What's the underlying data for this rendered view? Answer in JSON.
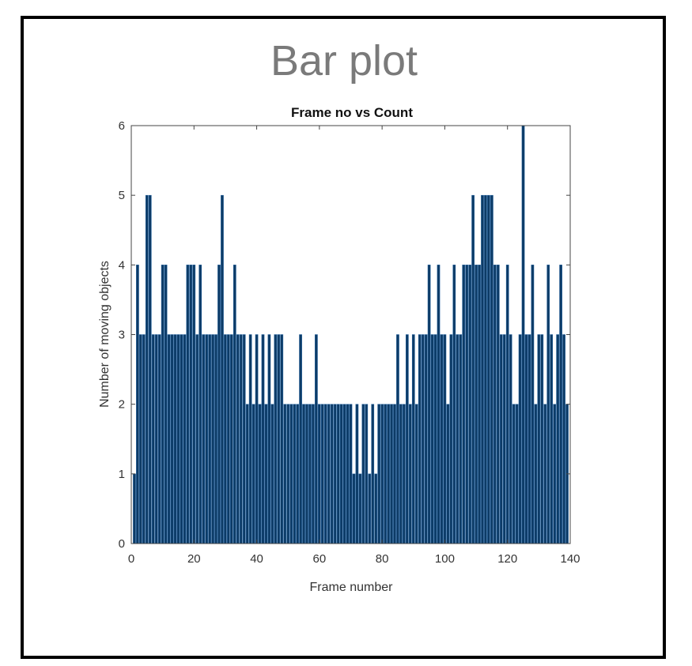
{
  "heading": "Bar plot",
  "colors": {
    "bar": "#0d3b66",
    "bar_edge": "#1f5f9e",
    "axis": "#444444",
    "frame": "#000000"
  },
  "chart_data": {
    "type": "bar",
    "title": "Frame no vs Count",
    "xlabel": "Frame number",
    "ylabel": "Number of moving objects",
    "xlim": [
      0,
      140
    ],
    "ylim": [
      0,
      6
    ],
    "xticks": [
      "0",
      "20",
      "40",
      "60",
      "80",
      "100",
      "120",
      "140"
    ],
    "yticks": [
      "0",
      "1",
      "2",
      "3",
      "4",
      "5",
      "6"
    ],
    "grid": false,
    "x": [
      1,
      2,
      3,
      4,
      5,
      6,
      7,
      8,
      9,
      10,
      11,
      12,
      13,
      14,
      15,
      16,
      17,
      18,
      19,
      20,
      21,
      22,
      23,
      24,
      25,
      26,
      27,
      28,
      29,
      30,
      31,
      32,
      33,
      34,
      35,
      36,
      37,
      38,
      39,
      40,
      41,
      42,
      43,
      44,
      45,
      46,
      47,
      48,
      49,
      50,
      51,
      52,
      53,
      54,
      55,
      56,
      57,
      58,
      59,
      60,
      61,
      62,
      63,
      64,
      65,
      66,
      67,
      68,
      69,
      70,
      71,
      72,
      73,
      74,
      75,
      76,
      77,
      78,
      79,
      80,
      81,
      82,
      83,
      84,
      85,
      86,
      87,
      88,
      89,
      90,
      91,
      92,
      93,
      94,
      95,
      96,
      97,
      98,
      99,
      100,
      101,
      102,
      103,
      104,
      105,
      106,
      107,
      108,
      109,
      110,
      111,
      112,
      113,
      114,
      115,
      116,
      117,
      118,
      119,
      120,
      121,
      122,
      123,
      124,
      125,
      126,
      127,
      128,
      129,
      130,
      131,
      132,
      133,
      134,
      135,
      136,
      137,
      138,
      139
    ],
    "values": [
      1,
      4,
      3,
      3,
      5,
      5,
      3,
      3,
      3,
      4,
      4,
      3,
      3,
      3,
      3,
      3,
      3,
      4,
      4,
      4,
      3,
      4,
      3,
      3,
      3,
      3,
      3,
      4,
      5,
      3,
      3,
      3,
      4,
      3,
      3,
      3,
      2,
      3,
      2,
      3,
      2,
      3,
      2,
      3,
      2,
      3,
      3,
      3,
      2,
      2,
      2,
      2,
      2,
      3,
      2,
      2,
      2,
      2,
      3,
      2,
      2,
      2,
      2,
      2,
      2,
      2,
      2,
      2,
      2,
      2,
      1,
      2,
      1,
      2,
      2,
      1,
      2,
      1,
      2,
      2,
      2,
      2,
      2,
      2,
      3,
      2,
      2,
      3,
      2,
      3,
      2,
      3,
      3,
      3,
      4,
      3,
      3,
      4,
      3,
      3,
      2,
      3,
      4,
      3,
      3,
      4,
      4,
      4,
      5,
      4,
      4,
      5,
      5,
      5,
      5,
      4,
      4,
      3,
      3,
      4,
      3,
      2,
      2,
      3,
      6,
      3,
      3,
      4,
      2,
      3,
      3,
      2,
      4,
      3,
      2,
      3,
      4,
      3,
      2
    ]
  }
}
